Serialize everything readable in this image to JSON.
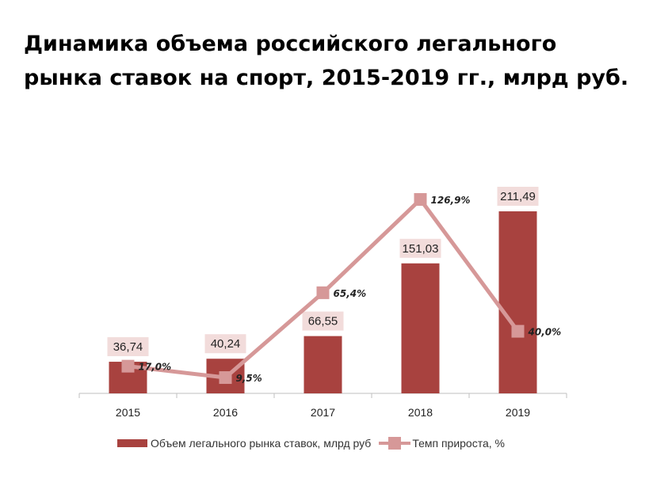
{
  "title_line1": "Динамика объема российского легального",
  "title_line2": "рынка ставок на спорт, 2015-2019 гг., млрд руб.",
  "chart_data": {
    "type": "bar",
    "categories": [
      "2015",
      "2016",
      "2017",
      "2018",
      "2019"
    ],
    "series": [
      {
        "name": "Объем легального рынка ставок, млрд руб",
        "type": "bar",
        "values": [
          36.74,
          40.24,
          66.55,
          151.03,
          211.49
        ],
        "labels": [
          "36,74",
          "40,24",
          "66,55",
          "151,03",
          "211,49"
        ]
      },
      {
        "name": "Темп прироста, %",
        "type": "line",
        "values": [
          17.0,
          9.5,
          65.4,
          126.9,
          40.0
        ],
        "labels": [
          "17,0%",
          "9,5%",
          "65,4%",
          "126,9%",
          "40,0%"
        ]
      }
    ],
    "ylim": [
      0,
      211.49
    ],
    "growth_ylim": [
      -15,
      126.9
    ],
    "colors": {
      "bar": "#A8423F",
      "line": "#D69898",
      "label_box": "#F2DCDB",
      "axis": "#BFBFBF"
    }
  }
}
